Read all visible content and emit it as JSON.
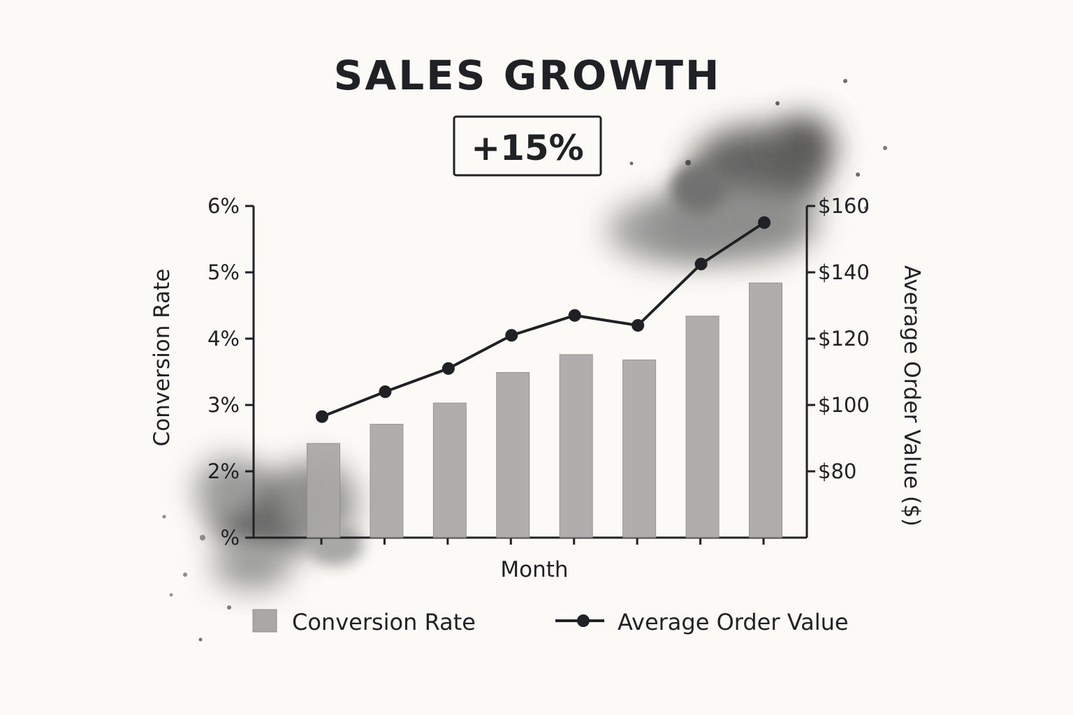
{
  "chart_data": {
    "type": "bar",
    "title": "SALES GROWTH",
    "badge": "+15%",
    "xlabel": "Month",
    "ylabel_left": "Conversion Rate",
    "ylabel_right": "Average Order Value ($)",
    "categories": [
      "",
      "",
      "",
      "",
      "",
      "",
      "",
      ""
    ],
    "left_ticks": [
      "%",
      "2%",
      "3%",
      "4%",
      "5%",
      "6%"
    ],
    "left_ylim": [
      1,
      6
    ],
    "right_ticks": [
      "$80",
      "$100",
      "$120",
      "$140",
      "$160"
    ],
    "right_ylim": [
      60,
      160
    ],
    "series": [
      {
        "name": "Conversion Rate",
        "type": "bar",
        "axis": "left",
        "color": "#a9a8a6",
        "values": [
          2.42,
          2.71,
          3.03,
          3.49,
          3.76,
          3.68,
          4.34,
          4.84
        ]
      },
      {
        "name": "Average Order Value",
        "type": "line",
        "axis": "right",
        "color": "#1f2124",
        "values": [
          96.5,
          104,
          111,
          121,
          127,
          124,
          142.5,
          155
        ]
      }
    ],
    "legend_position": "bottom",
    "grid": false
  }
}
